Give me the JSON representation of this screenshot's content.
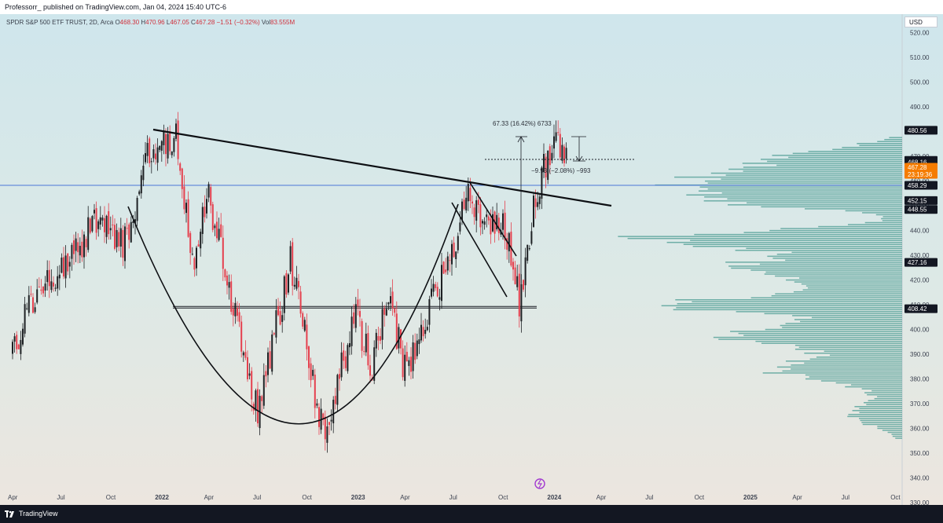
{
  "header": {
    "publisher": "Professorr_  published on TradingView.com, Jan 04, 2024 15:40 UTC-6"
  },
  "legend": {
    "symbol": "SPDR S&P 500 ETF TRUST, 2D, Arca",
    "o_label": "O",
    "o_value": "468.30",
    "h_label": "H",
    "h_value": "470.96",
    "l_label": "L",
    "l_value": "467.05",
    "c_label": "C",
    "c_value": "467.28",
    "change": "−1.51 (−0.32%)",
    "vol_label": "Vol",
    "vol_value": "83.555M"
  },
  "currency": "USD",
  "footer": {
    "brand": "TradingView"
  },
  "colors": {
    "up": "#1e2124",
    "down": "#e5404e",
    "profile": "#5aa39b",
    "hline": "#4a76d8",
    "orange_badge": "#f57c00",
    "dark_badge": "#131722"
  },
  "chart_data": {
    "type": "candlestick",
    "title": "",
    "ylim": [
      330,
      525
    ],
    "y_ticks": [
      "520.00",
      "510.00",
      "500.00",
      "490.00",
      "480.00",
      "470.00",
      "460.00",
      "450.00",
      "440.00",
      "430.00",
      "420.00",
      "410.00",
      "400.00",
      "390.00",
      "380.00",
      "370.00",
      "360.00",
      "350.00",
      "340.00",
      "330.00"
    ],
    "x_ticks": [
      "Apr",
      "Jul",
      "Oct",
      "2022",
      "Apr",
      "Jul",
      "Oct",
      "2023",
      "Apr",
      "Jul",
      "Oct",
      "2024",
      "Apr",
      "Jul",
      "Oct",
      "2025",
      "Apr",
      "Jul",
      "Oct"
    ],
    "key_points": [
      {
        "date": "2021-03",
        "close": 389
      },
      {
        "date": "2021-04",
        "close": 411
      },
      {
        "date": "2021-06",
        "close": 424
      },
      {
        "date": "2021-08",
        "close": 443
      },
      {
        "date": "2021-10",
        "close": 435
      },
      {
        "date": "2021-11",
        "close": 468
      },
      {
        "date": "2022-01",
        "close": 477
      },
      {
        "date": "2022-02",
        "close": 428
      },
      {
        "date": "2022-03",
        "close": 452
      },
      {
        "date": "2022-05",
        "close": 396
      },
      {
        "date": "2022-06",
        "close": 366
      },
      {
        "date": "2022-08",
        "close": 428
      },
      {
        "date": "2022-10",
        "close": 357
      },
      {
        "date": "2022-12",
        "close": 405
      },
      {
        "date": "2023-01",
        "close": 385
      },
      {
        "date": "2023-02",
        "close": 414
      },
      {
        "date": "2023-03",
        "close": 383
      },
      {
        "date": "2023-05",
        "close": 416
      },
      {
        "date": "2023-07",
        "close": 456
      },
      {
        "date": "2023-08",
        "close": 440
      },
      {
        "date": "2023-09",
        "close": 447
      },
      {
        "date": "2023-10",
        "close": 411
      },
      {
        "date": "2023-11",
        "close": 455
      },
      {
        "date": "2023-12",
        "close": 476
      },
      {
        "date": "2024-01",
        "close": 467.28
      }
    ],
    "annotations": {
      "measure_up": "67.33 (16.42%) 6733",
      "measure_down": "−9.93 (−2.08%) −993"
    },
    "price_badges": [
      {
        "price": "480.56",
        "value": 480.56,
        "style": "dark"
      },
      {
        "price": "468.37",
        "value": 468.37,
        "style": "dark"
      },
      {
        "price": "468.16",
        "value": 467.6,
        "style": "dark"
      },
      {
        "price": "467.28",
        "value": 465.6,
        "style": "orange",
        "sub": "23:19:36"
      },
      {
        "price": "458.29",
        "value": 458.29,
        "style": "dark"
      },
      {
        "price": "452.15",
        "value": 452.15,
        "style": "dark"
      },
      {
        "price": "448.55",
        "value": 448.55,
        "style": "dark"
      },
      {
        "price": "427.16",
        "value": 427.16,
        "style": "dark"
      },
      {
        "price": "408.42",
        "value": 408.42,
        "style": "dark"
      }
    ],
    "horizontal_line": 458.29,
    "support_line": 409
  }
}
